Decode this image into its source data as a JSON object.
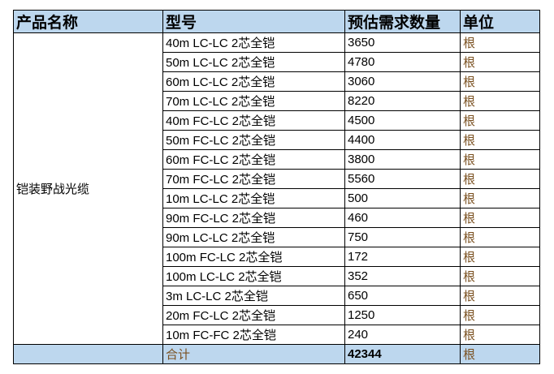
{
  "headers": {
    "product_name": "产品名称",
    "model": "型号",
    "quantity": "预估需求数量",
    "unit": "单位"
  },
  "product_name": "铠装野战光缆",
  "rows": [
    {
      "model": "40m LC-LC 2芯全铠",
      "quantity": "3650",
      "unit": "根"
    },
    {
      "model": "50m LC-LC 2芯全铠",
      "quantity": "4780",
      "unit": "根"
    },
    {
      "model": "60m LC-LC 2芯全铠",
      "quantity": "3060",
      "unit": "根"
    },
    {
      "model": "70m LC-LC 2芯全铠",
      "quantity": "8220",
      "unit": "根"
    },
    {
      "model": "40m FC-LC 2芯全铠",
      "quantity": "4500",
      "unit": "根"
    },
    {
      "model": "50m FC-LC 2芯全铠",
      "quantity": "4400",
      "unit": "根"
    },
    {
      "model": "60m FC-LC 2芯全铠",
      "quantity": "3800",
      "unit": "根"
    },
    {
      "model": "70m FC-LC 2芯全铠",
      "quantity": "5560",
      "unit": "根"
    },
    {
      "model": "10m LC-LC 2芯全铠",
      "quantity": "500",
      "unit": "根"
    },
    {
      "model": "90m FC-LC 2芯全铠",
      "quantity": "460",
      "unit": "根"
    },
    {
      "model": "90m LC-LC 2芯全铠",
      "quantity": "750",
      "unit": "根"
    },
    {
      "model": "100m FC-LC 2芯全铠",
      "quantity": "172",
      "unit": "根"
    },
    {
      "model": "100m LC-LC 2芯全铠",
      "quantity": "352",
      "unit": "根"
    },
    {
      "model": "3m LC-LC 2芯全铠",
      "quantity": "650",
      "unit": "根"
    },
    {
      "model": "20m FC-LC 2芯全铠",
      "quantity": "1250",
      "unit": "根"
    },
    {
      "model": "10m FC-FC 2芯全铠",
      "quantity": "240",
      "unit": "根"
    }
  ],
  "total": {
    "label": "合计",
    "quantity": "42344",
    "unit": "根"
  },
  "colors": {
    "header_bg": "#bdd7ee",
    "unit_text": "#7a5020"
  }
}
